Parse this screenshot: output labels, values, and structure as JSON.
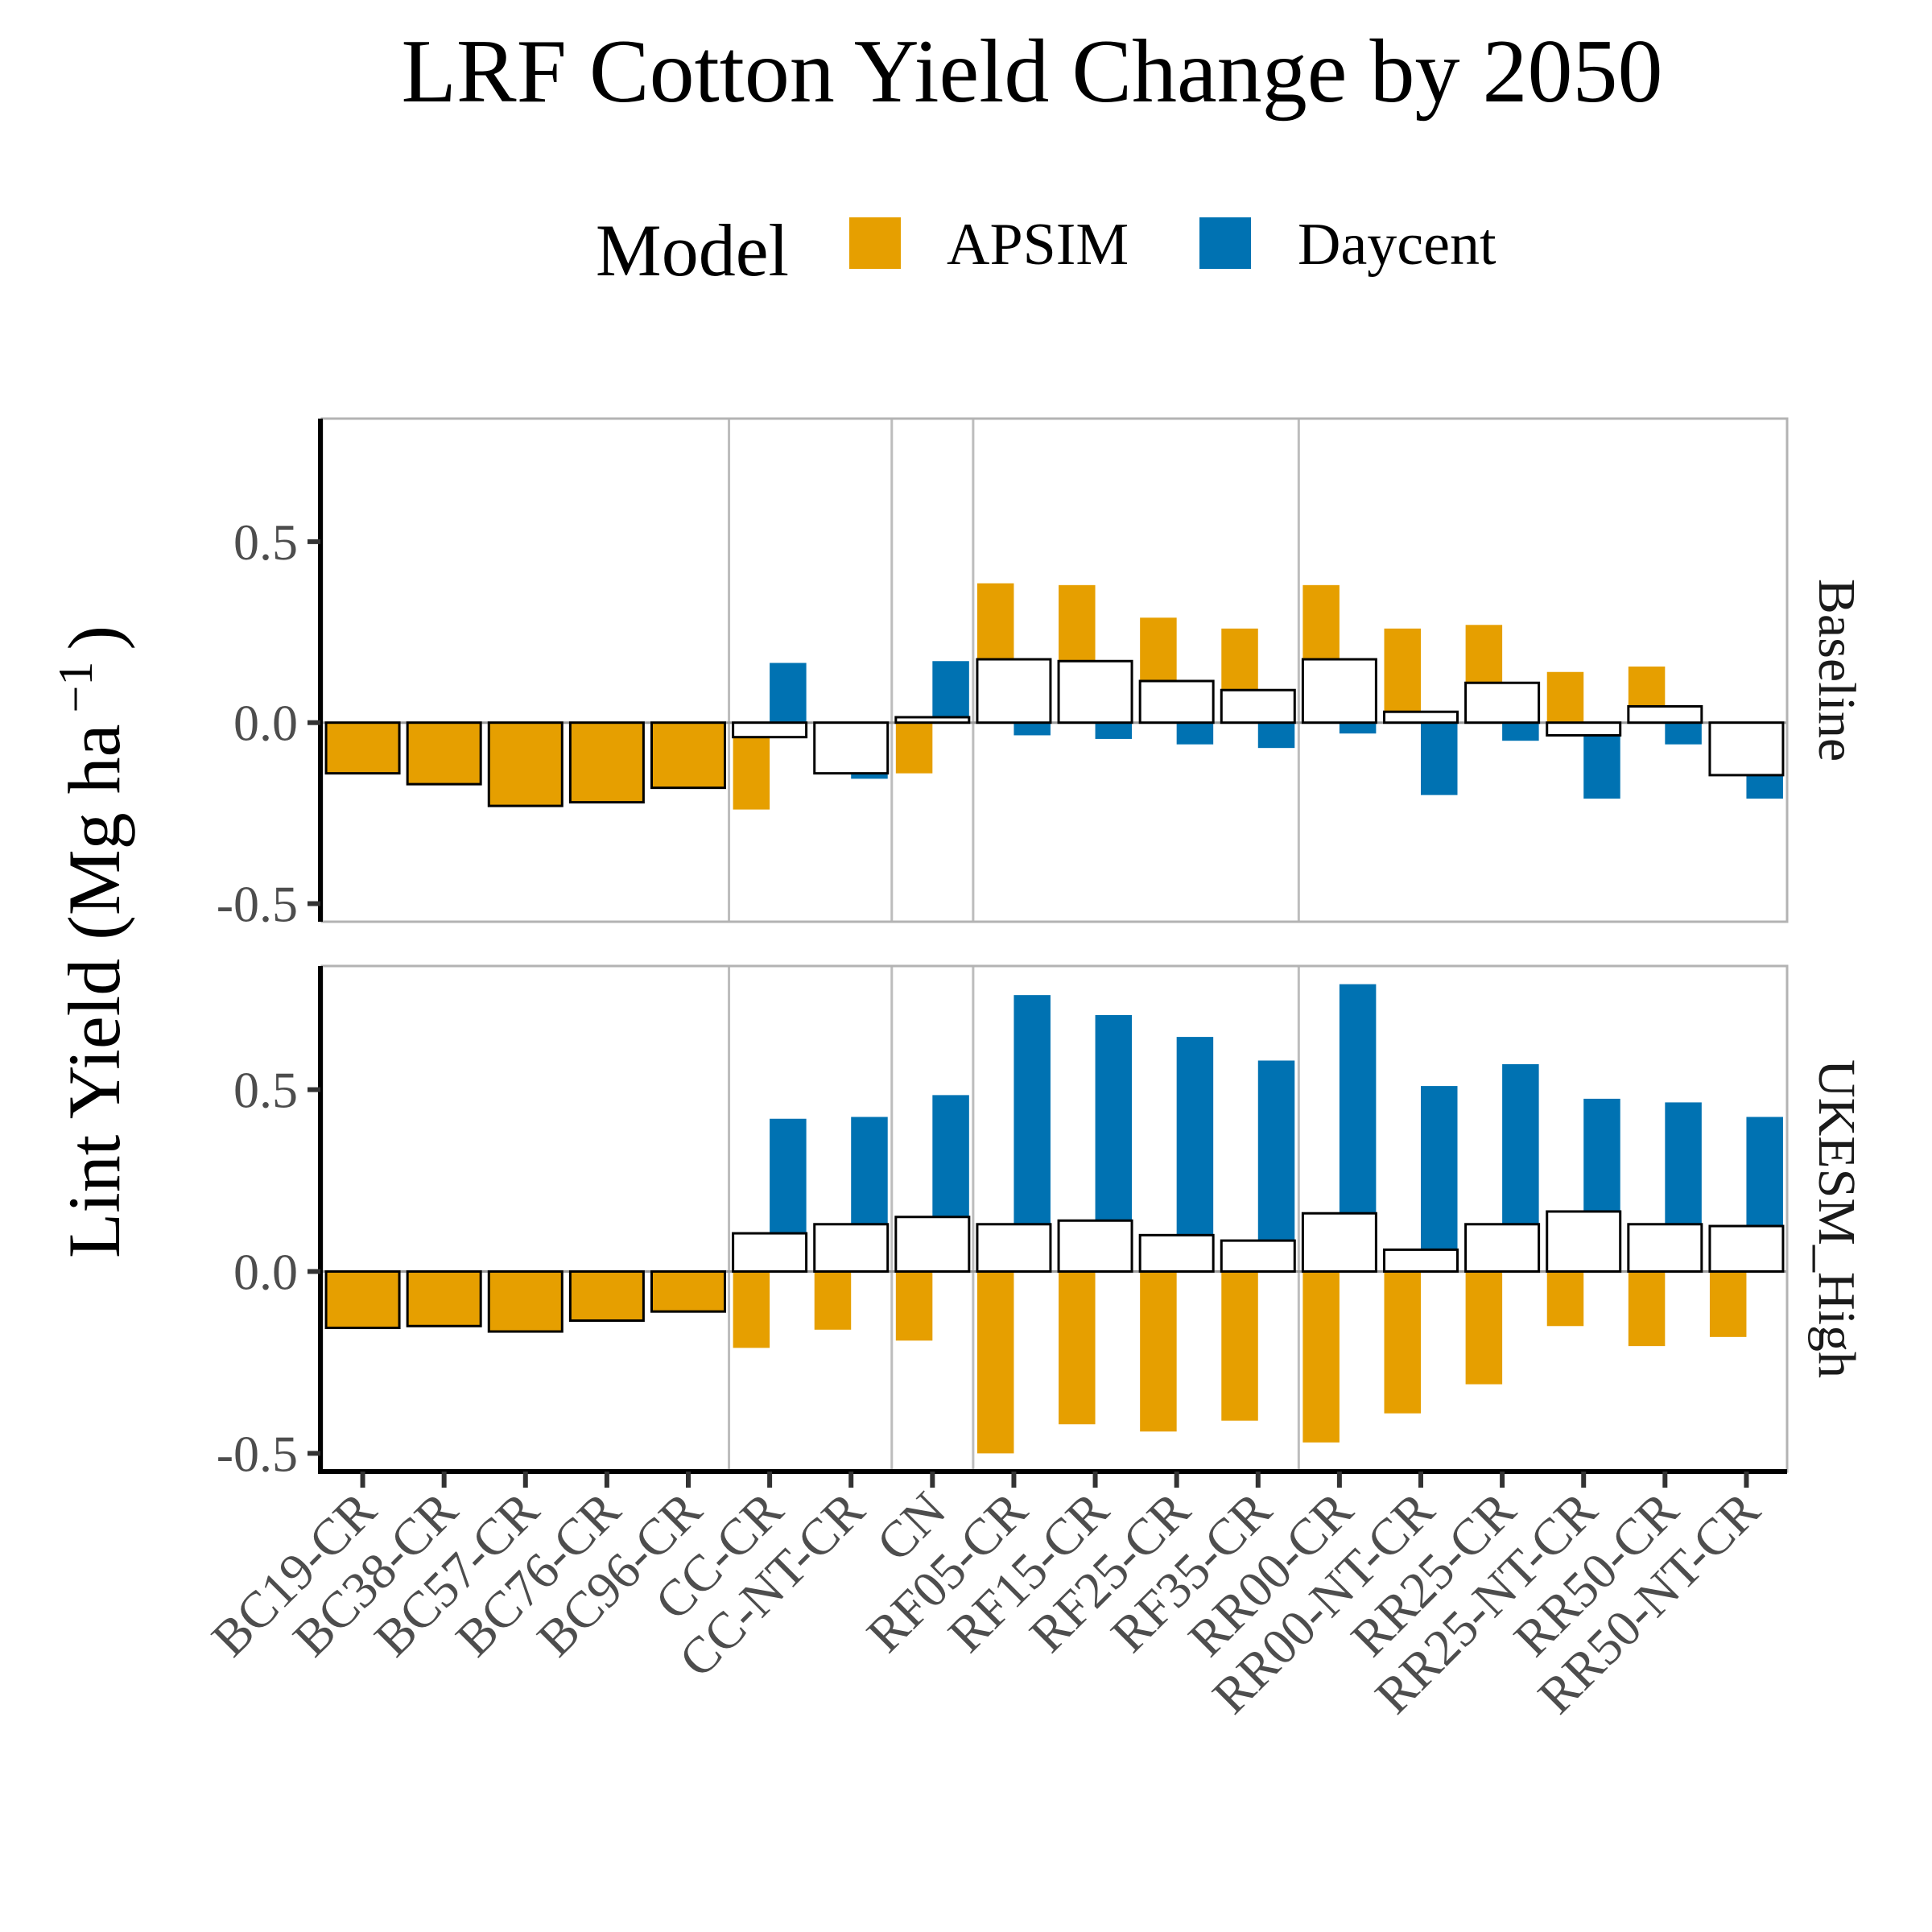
{
  "chart_data": {
    "type": "bar",
    "title": "LRF Cotton Yield Change by 2050",
    "legend": {
      "title": "Model",
      "position": "top",
      "entries": [
        {
          "label": "APSIM",
          "color": "#E69F00"
        },
        {
          "label": "Daycent",
          "color": "#0072B2"
        }
      ]
    },
    "ylabel": "Lint Yield (Mg ha",
    "ylabel_sup": "−1",
    "ylabel_close": ")",
    "xlabel": "",
    "ylim": [
      -0.55,
      0.84
    ],
    "yticks": [
      -0.5,
      0.0,
      0.5
    ],
    "ytick_labels": [
      "-0.5",
      "0.0",
      "0.5"
    ],
    "grid": "vertical group separators only",
    "categories": [
      "BC19-CR",
      "BC38-CR",
      "BC57-CR",
      "BC76-CR",
      "BC96-CR",
      "CC-CR",
      "CC-NT-CR",
      "CN",
      "RF05-CR",
      "RF15-CR",
      "RF25-CR",
      "RF35-CR",
      "RR00-CR",
      "RR00-NT-CR",
      "RR25-CR",
      "RR25-NT-CR",
      "RR50-CR",
      "RR50-NT-CR"
    ],
    "group_separators_after": [
      "BC96-CR",
      "CC-NT-CR",
      "CN",
      "RF35-CR"
    ],
    "panels": [
      {
        "name": "Baseline",
        "series": [
          {
            "name": "APSIM",
            "values": [
              -0.14,
              -0.17,
              -0.23,
              -0.22,
              -0.18,
              -0.24,
              -0.13,
              -0.14,
              0.385,
              0.38,
              0.29,
              0.26,
              0.38,
              0.26,
              0.27,
              0.14,
              0.155,
              -0.075
            ]
          },
          {
            "name": "Daycent",
            "values": [
              null,
              null,
              null,
              null,
              null,
              0.165,
              -0.155,
              0.17,
              -0.035,
              -0.045,
              -0.06,
              -0.07,
              -0.03,
              -0.2,
              -0.05,
              -0.21,
              -0.06,
              -0.21
            ]
          },
          {
            "name": "mean",
            "values": [
              -0.14,
              -0.17,
              -0.23,
              -0.22,
              -0.18,
              -0.04,
              -0.14,
              0.015,
              0.175,
              0.17,
              0.115,
              0.09,
              0.175,
              0.03,
              0.11,
              -0.035,
              0.045,
              -0.145
            ]
          }
        ]
      },
      {
        "name": "UKESM_High",
        "series": [
          {
            "name": "APSIM",
            "values": [
              -0.155,
              -0.15,
              -0.165,
              -0.135,
              -0.11,
              -0.21,
              -0.16,
              -0.19,
              -0.5,
              -0.42,
              -0.44,
              -0.41,
              -0.47,
              -0.39,
              -0.31,
              -0.15,
              -0.205,
              -0.18
            ]
          },
          {
            "name": "Daycent",
            "values": [
              null,
              null,
              null,
              null,
              null,
              0.42,
              0.425,
              0.485,
              0.76,
              0.705,
              0.645,
              0.58,
              0.79,
              0.51,
              0.57,
              0.475,
              0.465,
              0.425
            ]
          },
          {
            "name": "mean",
            "values": [
              -0.155,
              -0.15,
              -0.165,
              -0.135,
              -0.11,
              0.105,
              0.13,
              0.15,
              0.13,
              0.14,
              0.1,
              0.085,
              0.16,
              0.06,
              0.13,
              0.165,
              0.13,
              0.125
            ]
          }
        ]
      }
    ]
  }
}
